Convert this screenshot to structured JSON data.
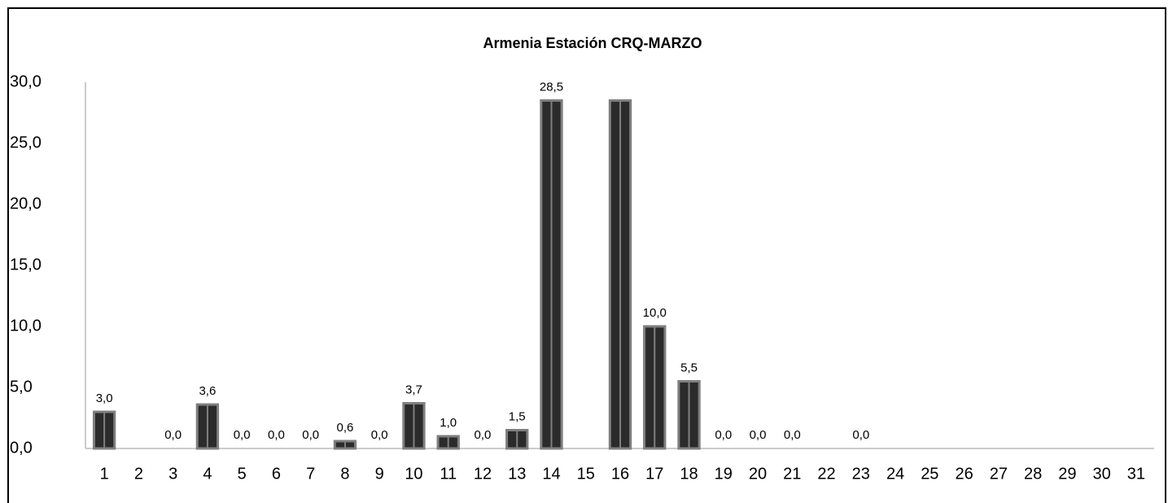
{
  "chart_data": {
    "type": "bar",
    "title": "Armenia Estación CRQ-MARZO",
    "categories": [
      "1",
      "2",
      "3",
      "4",
      "5",
      "6",
      "7",
      "8",
      "9",
      "10",
      "11",
      "12",
      "13",
      "14",
      "15",
      "16",
      "17",
      "18",
      "19",
      "20",
      "21",
      "22",
      "23",
      "24",
      "25",
      "26",
      "27",
      "28",
      "29",
      "30",
      "31"
    ],
    "values": [
      3.0,
      null,
      0,
      3.6,
      0,
      0,
      0,
      0.6,
      0,
      3.7,
      1.0,
      0,
      1.5,
      28.5,
      null,
      28.5,
      10.0,
      5.5,
      0,
      0,
      0,
      null,
      0,
      null,
      null,
      null,
      null,
      null,
      null,
      null,
      null
    ],
    "value_labels": [
      "3,0",
      null,
      "0,0",
      "3,6",
      "0,0",
      "0,0",
      "0,0",
      "0,6",
      "0,0",
      "3,7",
      "1,0",
      "0,0",
      "1,5",
      "28,5",
      null,
      null,
      "10,0",
      "5,5",
      "0,0",
      "0,0",
      "0,0",
      null,
      "0,0",
      null,
      null,
      null,
      null,
      null,
      null,
      null,
      null
    ],
    "color": "#2b2b2b",
    "edge_color": "#7f7f7f",
    "ylim": [
      0,
      30
    ],
    "yticks": [
      {
        "value": 0,
        "label": "0,0"
      },
      {
        "value": 5,
        "label": "5,0"
      },
      {
        "value": 10,
        "label": "10,0"
      },
      {
        "value": 15,
        "label": "15,0"
      },
      {
        "value": 20,
        "label": "20,0"
      },
      {
        "value": 25,
        "label": "25,0"
      },
      {
        "value": 30,
        "label": "30,0"
      }
    ],
    "grid": false
  }
}
